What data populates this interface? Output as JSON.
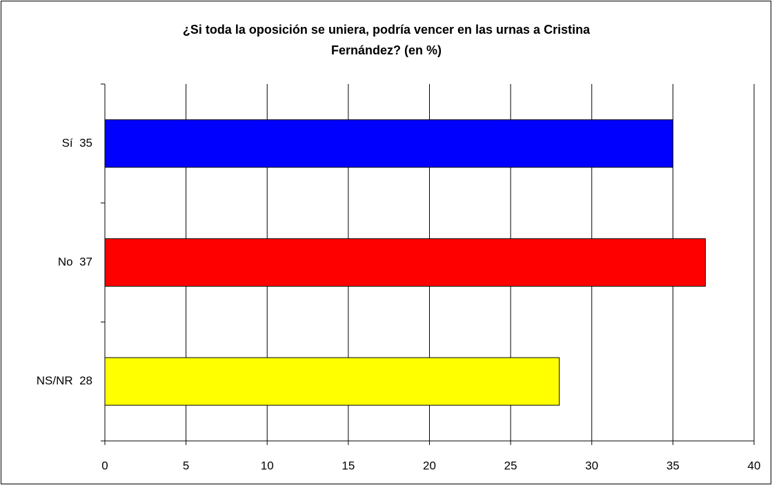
{
  "chart_data": {
    "type": "bar",
    "orientation": "horizontal",
    "title": "¿Si toda la oposición se uniera, podría vencer en las urnas a Cristina Fernández? (en %)",
    "categories": [
      "Sí  35",
      "No  37",
      "NS/NR  28"
    ],
    "values": [
      35,
      37,
      28
    ],
    "colors": [
      "#0000ff",
      "#ff0000",
      "#ffff00"
    ],
    "xlim": [
      0,
      40
    ],
    "xticks": [
      0,
      5,
      10,
      15,
      20,
      25,
      30,
      35,
      40
    ],
    "grid": true
  }
}
